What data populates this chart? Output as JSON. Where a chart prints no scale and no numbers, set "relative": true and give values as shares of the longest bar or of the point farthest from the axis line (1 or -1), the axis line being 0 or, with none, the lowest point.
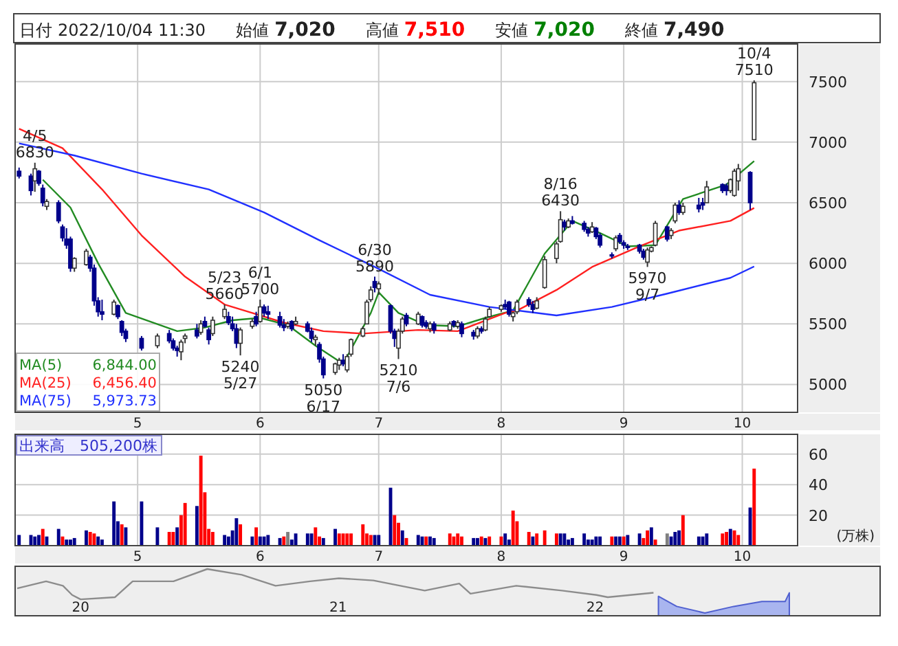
{
  "chart_data": [
    {
      "type": "candlestick",
      "grid": true,
      "legend": "bottom left",
      "colors": [
        "#00008b",
        "#00008b",
        "#ffffff",
        "#00008b",
        "#00008b",
        "#ffffff",
        "#00008b",
        "#00008b",
        "#00008b",
        "#00008b",
        "#ffffff",
        "#ffffff",
        "#00008b",
        "#00008b",
        "#00008b",
        "#00008b",
        "#ffffff",
        "#00008b",
        "#00008b",
        "#00008b",
        "#00008b",
        "#ffffff",
        "#00008b",
        "#00008b",
        "#00008b",
        "#ffffff",
        "#ffffff",
        "#00008b",
        "#ffffff",
        "#00008b",
        "#00008b",
        "#ffffff",
        "#ffffff",
        "#00008b",
        "#00008b",
        "#00008b",
        "#ffffff",
        "#ffffff",
        "#00008b",
        "#ffffff",
        "#00008b",
        "#00008b",
        "#00008b",
        "#00008b",
        "#ffffff",
        "#00008b",
        "#ffffff",
        "#00008b",
        "#00008b",
        "#ffffff",
        "#00008b",
        "#00008b",
        "#ffffff",
        "#ffffff",
        "#00008b",
        "#ffffff",
        "#ffffff",
        "#ffffff",
        "#ffffff",
        "#ffffff",
        "#00008b",
        "#ffffff",
        "#00008b",
        "#00008b",
        "#ffffff",
        "#ffffff",
        "#00008b",
        "#ffffff",
        "#00008b",
        "#00008b",
        "#ffffff",
        "#00008b",
        "#ffffff",
        "#00008b",
        "#ffffff",
        "#00008b",
        "#00008b",
        "#ffffff",
        "#00008b",
        "#ffffff",
        "#ffffff",
        "#ffffff",
        "#00008b",
        "#00008b",
        "#ffffff",
        "#ffffff",
        "#00008b",
        "#00008b",
        "#ffffff",
        "#ffffff",
        "#ffffff",
        "#ffffff",
        "#00008b",
        "#ffffff",
        "#00008b",
        "#00008b",
        "#00008b",
        "#ffffff",
        "#00008b",
        "#00008b",
        "#00008b",
        "#ffffff",
        "#00008b",
        "#00008b",
        "#00008b",
        "#00008b",
        "#00008b",
        "#ffffff",
        "#ffffff",
        "#ffffff",
        "#00008b",
        "#ffffff",
        "#ffffff",
        "#00008b",
        "#ffffff",
        "#00008b",
        "#00008b",
        "#ffffff",
        "#00008b",
        "#00008b",
        "#ffffff",
        "#ffffff",
        "#ffffff",
        "#00008b",
        "#ffffff"
      ],
      "xlim": [
        "2022-03-31",
        "2022-10-15"
      ],
      "xticks": [
        {
          "value": "2022-05-01",
          "label": "5"
        },
        {
          "value": "2022-06-01",
          "label": "6"
        },
        {
          "value": "2022-07-01",
          "label": "7"
        },
        {
          "value": "2022-08-01",
          "label": "8"
        },
        {
          "value": "2022-09-01",
          "label": "9"
        },
        {
          "value": "2022-10-01",
          "label": "10"
        }
      ],
      "ylim": [
        4770,
        7810
      ],
      "yticks": [
        5000,
        5500,
        6000,
        6500,
        7000,
        7500
      ],
      "x": [
        "2022-04-01",
        "2022-04-04",
        "2022-04-05",
        "2022-04-06",
        "2022-04-07",
        "2022-04-08",
        "2022-04-11",
        "2022-04-12",
        "2022-04-13",
        "2022-04-14",
        "2022-04-15",
        "2022-04-18",
        "2022-04-19",
        "2022-04-20",
        "2022-04-21",
        "2022-04-22",
        "2022-04-25",
        "2022-04-26",
        "2022-04-27",
        "2022-04-28",
        "2022-05-02",
        "2022-05-06",
        "2022-05-09",
        "2022-05-10",
        "2022-05-11",
        "2022-05-12",
        "2022-05-13",
        "2022-05-16",
        "2022-05-17",
        "2022-05-18",
        "2022-05-19",
        "2022-05-20",
        "2022-05-23",
        "2022-05-24",
        "2022-05-25",
        "2022-05-26",
        "2022-05-27",
        "2022-05-30",
        "2022-05-31",
        "2022-06-01",
        "2022-06-02",
        "2022-06-03",
        "2022-06-06",
        "2022-06-07",
        "2022-06-08",
        "2022-06-09",
        "2022-06-10",
        "2022-06-13",
        "2022-06-14",
        "2022-06-15",
        "2022-06-16",
        "2022-06-17",
        "2022-06-20",
        "2022-06-21",
        "2022-06-22",
        "2022-06-23",
        "2022-06-24",
        "2022-06-27",
        "2022-06-28",
        "2022-06-29",
        "2022-06-30",
        "2022-07-01",
        "2022-07-04",
        "2022-07-05",
        "2022-07-06",
        "2022-07-07",
        "2022-07-08",
        "2022-07-11",
        "2022-07-12",
        "2022-07-13",
        "2022-07-14",
        "2022-07-15",
        "2022-07-19",
        "2022-07-20",
        "2022-07-21",
        "2022-07-22",
        "2022-07-25",
        "2022-07-26",
        "2022-07-27",
        "2022-07-28",
        "2022-07-29",
        "2022-08-01",
        "2022-08-02",
        "2022-08-03",
        "2022-08-04",
        "2022-08-05",
        "2022-08-08",
        "2022-08-09",
        "2022-08-10",
        "2022-08-12",
        "2022-08-15",
        "2022-08-16",
        "2022-08-17",
        "2022-08-18",
        "2022-08-19",
        "2022-08-22",
        "2022-08-23",
        "2022-08-24",
        "2022-08-25",
        "2022-08-26",
        "2022-08-29",
        "2022-08-30",
        "2022-08-31",
        "2022-09-01",
        "2022-09-02",
        "2022-09-05",
        "2022-09-06",
        "2022-09-07",
        "2022-09-08",
        "2022-09-09",
        "2022-09-12",
        "2022-09-13",
        "2022-09-14",
        "2022-09-15",
        "2022-09-16",
        "2022-09-20",
        "2022-09-21",
        "2022-09-22",
        "2022-09-26",
        "2022-09-27",
        "2022-09-28",
        "2022-09-29",
        "2022-09-30",
        "2022-10-03",
        "2022-10-04"
      ],
      "ohlc": [
        [
          6760,
          6790,
          6700,
          6720
        ],
        [
          6720,
          6740,
          6560,
          6600
        ],
        [
          6680,
          6830,
          6590,
          6780
        ],
        [
          6760,
          6770,
          6640,
          6660
        ],
        [
          6620,
          6650,
          6470,
          6500
        ],
        [
          6470,
          6530,
          6440,
          6510
        ],
        [
          6500,
          6520,
          6330,
          6350
        ],
        [
          6300,
          6320,
          6180,
          6210
        ],
        [
          6200,
          6290,
          6120,
          6150
        ],
        [
          6200,
          6220,
          5930,
          5960
        ],
        [
          5960,
          6050,
          5930,
          6040
        ],
        [
          5990,
          6120,
          5980,
          6100
        ],
        [
          6050,
          6070,
          5930,
          5960
        ],
        [
          5960,
          5990,
          5650,
          5690
        ],
        [
          5690,
          5720,
          5560,
          5600
        ],
        [
          5600,
          5700,
          5530,
          5580
        ],
        [
          5580,
          5700,
          5570,
          5680
        ],
        [
          5650,
          5660,
          5540,
          5560
        ],
        [
          5520,
          5530,
          5400,
          5430
        ],
        [
          5440,
          5460,
          5350,
          5380
        ],
        [
          5380,
          5400,
          5280,
          5300
        ],
        [
          5320,
          5420,
          5300,
          5400
        ],
        [
          5420,
          5450,
          5340,
          5360
        ],
        [
          5360,
          5380,
          5280,
          5300
        ],
        [
          5300,
          5320,
          5230,
          5280
        ],
        [
          5270,
          5370,
          5200,
          5350
        ],
        [
          5380,
          5420,
          5340,
          5400
        ],
        [
          5450,
          5500,
          5380,
          5400
        ],
        [
          5430,
          5530,
          5410,
          5500
        ],
        [
          5520,
          5560,
          5470,
          5480
        ],
        [
          5450,
          5470,
          5330,
          5370
        ],
        [
          5420,
          5560,
          5400,
          5530
        ],
        [
          5560,
          5660,
          5540,
          5620
        ],
        [
          5560,
          5600,
          5490,
          5510
        ],
        [
          5500,
          5560,
          5440,
          5460
        ],
        [
          5460,
          5500,
          5300,
          5340
        ],
        [
          5340,
          5470,
          5240,
          5450
        ],
        [
          5480,
          5540,
          5460,
          5520
        ],
        [
          5560,
          5600,
          5480,
          5500
        ],
        [
          5520,
          5700,
          5510,
          5640
        ],
        [
          5640,
          5660,
          5560,
          5590
        ],
        [
          5600,
          5650,
          5540,
          5580
        ],
        [
          5560,
          5600,
          5470,
          5490
        ],
        [
          5490,
          5540,
          5440,
          5470
        ],
        [
          5480,
          5520,
          5460,
          5500
        ],
        [
          5520,
          5530,
          5440,
          5460
        ],
        [
          5500,
          5560,
          5490,
          5520
        ],
        [
          5500,
          5520,
          5430,
          5440
        ],
        [
          5440,
          5470,
          5350,
          5380
        ],
        [
          5370,
          5410,
          5320,
          5390
        ],
        [
          5330,
          5350,
          5180,
          5210
        ],
        [
          5210,
          5230,
          5050,
          5080
        ],
        [
          5100,
          5180,
          5080,
          5170
        ],
        [
          5160,
          5220,
          5120,
          5200
        ],
        [
          5200,
          5250,
          5150,
          5170
        ],
        [
          5120,
          5250,
          5100,
          5230
        ],
        [
          5250,
          5380,
          5230,
          5370
        ],
        [
          5400,
          5480,
          5390,
          5460
        ],
        [
          5500,
          5700,
          5500,
          5680
        ],
        [
          5700,
          5810,
          5680,
          5780
        ],
        [
          5850,
          5890,
          5760,
          5800
        ],
        [
          5790,
          5850,
          5740,
          5830
        ],
        [
          5650,
          5660,
          5420,
          5440
        ],
        [
          5440,
          5460,
          5310,
          5380
        ],
        [
          5300,
          5460,
          5210,
          5440
        ],
        [
          5440,
          5560,
          5420,
          5540
        ],
        [
          5570,
          5590,
          5480,
          5500
        ],
        [
          5500,
          5600,
          5490,
          5580
        ],
        [
          5560,
          5570,
          5470,
          5490
        ],
        [
          5510,
          5530,
          5460,
          5480
        ],
        [
          5460,
          5520,
          5430,
          5500
        ],
        [
          5500,
          5520,
          5420,
          5450
        ],
        [
          5450,
          5520,
          5440,
          5500
        ],
        [
          5520,
          5530,
          5470,
          5490
        ],
        [
          5480,
          5530,
          5460,
          5510
        ],
        [
          5500,
          5520,
          5390,
          5420
        ],
        [
          5430,
          5450,
          5370,
          5400
        ],
        [
          5400,
          5480,
          5380,
          5460
        ],
        [
          5460,
          5480,
          5420,
          5440
        ],
        [
          5450,
          5560,
          5440,
          5540
        ],
        [
          5560,
          5640,
          5550,
          5620
        ],
        [
          5620,
          5660,
          5600,
          5650
        ],
        [
          5660,
          5700,
          5620,
          5640
        ],
        [
          5680,
          5690,
          5560,
          5580
        ],
        [
          5560,
          5600,
          5520,
          5590
        ],
        [
          5600,
          5700,
          5580,
          5680
        ],
        [
          5700,
          5720,
          5640,
          5660
        ],
        [
          5660,
          5690,
          5590,
          5620
        ],
        [
          5630,
          5720,
          5620,
          5690
        ],
        [
          5800,
          6060,
          5790,
          6030
        ],
        [
          6040,
          6180,
          6000,
          6160
        ],
        [
          6180,
          6430,
          6170,
          6360
        ],
        [
          6340,
          6360,
          6270,
          6300
        ],
        [
          6300,
          6370,
          6290,
          6350
        ],
        [
          6350,
          6390,
          6320,
          6330
        ],
        [
          6330,
          6350,
          6260,
          6280
        ],
        [
          6280,
          6300,
          6220,
          6250
        ],
        [
          6260,
          6340,
          6250,
          6300
        ],
        [
          6290,
          6300,
          6200,
          6220
        ],
        [
          6230,
          6250,
          6130,
          6150
        ],
        [
          6070,
          6090,
          6040,
          6060
        ],
        [
          6120,
          6230,
          6100,
          6210
        ],
        [
          6230,
          6250,
          6160,
          6180
        ],
        [
          6170,
          6190,
          6120,
          6150
        ],
        [
          6140,
          6160,
          6110,
          6130
        ],
        [
          6150,
          6160,
          6080,
          6100
        ],
        [
          6100,
          6120,
          6030,
          6050
        ],
        [
          6010,
          6130,
          5970,
          6110
        ],
        [
          6100,
          6140,
          6090,
          6130
        ],
        [
          6150,
          6350,
          6140,
          6330
        ],
        [
          6300,
          6310,
          6180,
          6200
        ],
        [
          6230,
          6290,
          6200,
          6270
        ],
        [
          6350,
          6500,
          6330,
          6480
        ],
        [
          6480,
          6520,
          6400,
          6420
        ],
        [
          6420,
          6500,
          6400,
          6470
        ],
        [
          6480,
          6540,
          6420,
          6450
        ],
        [
          6500,
          6540,
          6440,
          6480
        ],
        [
          6500,
          6680,
          6500,
          6630
        ],
        [
          6650,
          6660,
          6580,
          6600
        ],
        [
          6640,
          6660,
          6560,
          6600
        ],
        [
          6600,
          6700,
          6580,
          6690
        ],
        [
          6560,
          6780,
          6550,
          6760
        ],
        [
          6680,
          6820,
          6600,
          6780
        ],
        [
          6750,
          6760,
          6440,
          6500
        ],
        [
          7020,
          7510,
          7020,
          7490
        ]
      ],
      "series": [
        {
          "name": "MA(5)",
          "type": "line",
          "color": "#228b22",
          "x": [
            "2022-04-07",
            "2022-04-14",
            "2022-04-21",
            "2022-04-28",
            "2022-05-11",
            "2022-05-18",
            "2022-05-25",
            "2022-06-01",
            "2022-06-08",
            "2022-06-15",
            "2022-06-22",
            "2022-06-29",
            "2022-07-01",
            "2022-07-06",
            "2022-07-13",
            "2022-07-21",
            "2022-07-28",
            "2022-08-04",
            "2022-08-12",
            "2022-08-19",
            "2022-08-26",
            "2022-09-02",
            "2022-09-09",
            "2022-09-16",
            "2022-09-27",
            "2022-10-04"
          ],
          "values": [
            6690,
            6460,
            6000,
            5590,
            5440,
            5470,
            5530,
            5550,
            5490,
            5320,
            5170,
            5590,
            5760,
            5590,
            5490,
            5480,
            5550,
            5610,
            6080,
            6350,
            6250,
            6140,
            6150,
            6530,
            6650,
            6844
          ]
        },
        {
          "name": "MA(25)",
          "type": "line",
          "color": "#ff2020",
          "x": [
            "2022-04-01",
            "2022-04-12",
            "2022-04-22",
            "2022-05-02",
            "2022-05-13",
            "2022-05-23",
            "2022-05-30",
            "2022-06-07",
            "2022-06-17",
            "2022-06-27",
            "2022-07-11",
            "2022-07-21",
            "2022-08-02",
            "2022-08-05",
            "2022-08-15",
            "2022-08-24",
            "2022-09-05",
            "2022-09-15",
            "2022-09-28",
            "2022-10-04"
          ],
          "values": [
            7110,
            6950,
            6610,
            6230,
            5890,
            5660,
            5590,
            5510,
            5440,
            5420,
            5450,
            5440,
            5590,
            5610,
            5780,
            5970,
            6140,
            6270,
            6350,
            6456.4
          ]
        },
        {
          "name": "MA(75)",
          "type": "line",
          "color": "#2030ff",
          "x": [
            "2022-04-01",
            "2022-04-15",
            "2022-05-02",
            "2022-05-19",
            "2022-06-02",
            "2022-06-16",
            "2022-06-30",
            "2022-07-14",
            "2022-07-29",
            "2022-08-15",
            "2022-08-29",
            "2022-09-12",
            "2022-09-28",
            "2022-10-04"
          ],
          "values": [
            6990,
            6890,
            6740,
            6610,
            6420,
            6190,
            5970,
            5740,
            5640,
            5570,
            5640,
            5750,
            5880,
            5973.73
          ]
        }
      ],
      "annotations": [
        "日付",
        "2022/10/04 11:30",
        "始値",
        "7,020",
        "高値",
        "7,510",
        "安値",
        "7,020",
        "終値",
        "7,490",
        "6,844.00",
        "6,456.40",
        "5,973.73",
        {
          "text": "4/5\n6830",
          "x": "2022-04-05",
          "y": 6830
        },
        {
          "text": "5/23\n5660",
          "x": "2022-05-23",
          "y": 5660
        },
        {
          "text": "6/1\n5700",
          "x": "2022-06-01",
          "y": 5700
        },
        {
          "text": "5240\n5/27",
          "x": "2022-05-27",
          "y": 5240
        },
        {
          "text": "5050\n6/17",
          "x": "2022-06-17",
          "y": 5050
        },
        {
          "text": "6/30\n5890",
          "x": "2022-06-30",
          "y": 5890
        },
        {
          "text": "5210\n7/6",
          "x": "2022-07-06",
          "y": 5210
        },
        {
          "text": "8/16\n6430",
          "x": "2022-08-16",
          "y": 6430
        },
        {
          "text": "5970\n9/7",
          "x": "2022-09-07",
          "y": 5970
        },
        {
          "text": "10/4\n7510",
          "x": "2022-10-04",
          "y": 7510
        }
      ]
    },
    {
      "type": "bar",
      "grid": true,
      "ylabel": "(万株)",
      "annotations": [
        "出来高　505,200株"
      ],
      "xlim": [
        "2022-03-31",
        "2022-10-15"
      ],
      "xticks": [
        {
          "value": "2022-05-01",
          "label": "5"
        },
        {
          "value": "2022-06-01",
          "label": "6"
        },
        {
          "value": "2022-07-01",
          "label": "7"
        },
        {
          "value": "2022-08-01",
          "label": "8"
        },
        {
          "value": "2022-09-01",
          "label": "9"
        },
        {
          "value": "2022-10-01",
          "label": "10"
        }
      ],
      "ylim": [
        0,
        73
      ],
      "yticks": [
        20,
        40,
        60
      ],
      "x": [
        "2022-04-01",
        "2022-04-04",
        "2022-04-05",
        "2022-04-06",
        "2022-04-07",
        "2022-04-08",
        "2022-04-11",
        "2022-04-12",
        "2022-04-13",
        "2022-04-14",
        "2022-04-15",
        "2022-04-18",
        "2022-04-19",
        "2022-04-20",
        "2022-04-21",
        "2022-04-22",
        "2022-04-25",
        "2022-04-26",
        "2022-04-27",
        "2022-04-28",
        "2022-05-02",
        "2022-05-06",
        "2022-05-09",
        "2022-05-10",
        "2022-05-11",
        "2022-05-12",
        "2022-05-13",
        "2022-05-16",
        "2022-05-17",
        "2022-05-18",
        "2022-05-19",
        "2022-05-20",
        "2022-05-23",
        "2022-05-24",
        "2022-05-25",
        "2022-05-26",
        "2022-05-27",
        "2022-05-30",
        "2022-05-31",
        "2022-06-01",
        "2022-06-02",
        "2022-06-03",
        "2022-06-06",
        "2022-06-07",
        "2022-06-08",
        "2022-06-09",
        "2022-06-10",
        "2022-06-13",
        "2022-06-14",
        "2022-06-15",
        "2022-06-16",
        "2022-06-17",
        "2022-06-20",
        "2022-06-21",
        "2022-06-22",
        "2022-06-23",
        "2022-06-24",
        "2022-06-27",
        "2022-06-28",
        "2022-06-29",
        "2022-06-30",
        "2022-07-01",
        "2022-07-04",
        "2022-07-05",
        "2022-07-06",
        "2022-07-07",
        "2022-07-08",
        "2022-07-11",
        "2022-07-12",
        "2022-07-13",
        "2022-07-14",
        "2022-07-15",
        "2022-07-19",
        "2022-07-20",
        "2022-07-21",
        "2022-07-22",
        "2022-07-25",
        "2022-07-26",
        "2022-07-27",
        "2022-07-28",
        "2022-07-29",
        "2022-08-01",
        "2022-08-02",
        "2022-08-03",
        "2022-08-04",
        "2022-08-05",
        "2022-08-08",
        "2022-08-09",
        "2022-08-10",
        "2022-08-12",
        "2022-08-15",
        "2022-08-16",
        "2022-08-17",
        "2022-08-18",
        "2022-08-19",
        "2022-08-22",
        "2022-08-23",
        "2022-08-24",
        "2022-08-25",
        "2022-08-26",
        "2022-08-29",
        "2022-08-30",
        "2022-08-31",
        "2022-09-01",
        "2022-09-02",
        "2022-09-05",
        "2022-09-06",
        "2022-09-07",
        "2022-09-08",
        "2022-09-09",
        "2022-09-12",
        "2022-09-13",
        "2022-09-14",
        "2022-09-15",
        "2022-09-16",
        "2022-09-20",
        "2022-09-21",
        "2022-09-22",
        "2022-09-26",
        "2022-09-27",
        "2022-09-28",
        "2022-09-29",
        "2022-09-30",
        "2022-10-03",
        "2022-10-04"
      ],
      "values": [
        7,
        7,
        6,
        7,
        11,
        6,
        11,
        6,
        4,
        4,
        5,
        10,
        9,
        8,
        6,
        4,
        29,
        16,
        14,
        12,
        29,
        12,
        9,
        9,
        12,
        20,
        28,
        26,
        59,
        35,
        11,
        9,
        7,
        6,
        10,
        18,
        14,
        6,
        12,
        6,
        6,
        7,
        5,
        6,
        9,
        4,
        8,
        8,
        8,
        12,
        6,
        5,
        11,
        8,
        8,
        8,
        8,
        14,
        8,
        7,
        7,
        7,
        38,
        20,
        15,
        10,
        5,
        7,
        6,
        6,
        6,
        5,
        8,
        6,
        8,
        6,
        5,
        5,
        6,
        5,
        6,
        6,
        8,
        4,
        23,
        16,
        9,
        6,
        8,
        10,
        8,
        8,
        8,
        4,
        5,
        8,
        4,
        4,
        6,
        6,
        6,
        6,
        6,
        6,
        7,
        8,
        5,
        10,
        12,
        4,
        8,
        6,
        9,
        10,
        20,
        6,
        6,
        8,
        8,
        9,
        11,
        10,
        7,
        25,
        50.52
      ],
      "colors": [
        "#00008b",
        "#00008b",
        "#00008b",
        "#00008b",
        "#ff0000",
        "#00008b",
        "#00008b",
        "#ff0000",
        "#00008b",
        "#00008b",
        "#00008b",
        "#00008b",
        "#ff0000",
        "#ff0000",
        "#00008b",
        "#00008b",
        "#00008b",
        "#00008b",
        "#ff0000",
        "#00008b",
        "#00008b",
        "#00008b",
        "#ff0000",
        "#ff0000",
        "#00008b",
        "#ff0000",
        "#ff0000",
        "#00008b",
        "#ff0000",
        "#ff0000",
        "#ff0000",
        "#ff0000",
        "#00008b",
        "#00008b",
        "#00008b",
        "#00008b",
        "#ff0000",
        "#00008b",
        "#ff0000",
        "#00008b",
        "#00008b",
        "#00008b",
        "#00008b",
        "#ff0000",
        "#808080",
        "#00008b",
        "#00008b",
        "#00008b",
        "#00008b",
        "#ff0000",
        "#ff0000",
        "#00008b",
        "#00008b",
        "#ff0000",
        "#ff0000",
        "#ff0000",
        "#ff0000",
        "#ff0000",
        "#ff0000",
        "#ff0000",
        "#00008b",
        "#00008b",
        "#00008b",
        "#ff0000",
        "#ff0000",
        "#00008b",
        "#ff0000",
        "#00008b",
        "#00008b",
        "#ff0000",
        "#00008b",
        "#00008b",
        "#ff0000",
        "#ff0000",
        "#ff0000",
        "#ff0000",
        "#00008b",
        "#00008b",
        "#ff0000",
        "#00008b",
        "#ff0000",
        "#ff0000",
        "#00008b",
        "#00008b",
        "#ff0000",
        "#ff0000",
        "#ff0000",
        "#00008b",
        "#ff0000",
        "#ff0000",
        "#ff0000",
        "#00008b",
        "#00008b",
        "#00008b",
        "#00008b",
        "#00008b",
        "#00008b",
        "#00008b",
        "#00008b",
        "#00008b",
        "#ff0000",
        "#00008b",
        "#00008b",
        "#ff0000",
        "#00008b",
        "#00008b",
        "#ff0000",
        "#ff0000",
        "#00008b",
        "#ff0000",
        "#808080",
        "#00008b",
        "#00008b",
        "#00008b",
        "#ff0000",
        "#00008b",
        "#00008b",
        "#00008b",
        "#ff0000",
        "#ff0000",
        "#00008b",
        "#ff0000",
        "#ff0000",
        "#00008b",
        "#ff0000"
      ]
    },
    {
      "type": "line",
      "relative": true,
      "tick_labels": "x",
      "xlim": [
        "2019-09-30",
        "2023-02-10"
      ],
      "xticks": [
        {
          "value": "2020-01-01",
          "label": "20"
        },
        {
          "value": "2021-01-01",
          "label": "21"
        },
        {
          "value": "2022-01-01",
          "label": "22"
        }
      ],
      "series": [
        {
          "type": "line",
          "color": "#8c8c8c",
          "x": [
            "2019-10-03",
            "2019-11-13",
            "2019-12-07",
            "2019-12-20",
            "2020-01-01",
            "2020-02-19",
            "2020-03-15",
            "2020-05-12",
            "2020-06-29",
            "2020-08-17",
            "2020-10-04",
            "2020-11-22",
            "2021-01-02",
            "2021-02-20",
            "2021-05-04",
            "2021-06-22",
            "2021-07-08",
            "2021-09-11",
            "2021-11-15",
            "2022-01-03",
            "2022-01-19",
            "2022-03-25"
          ],
          "values": [
            0.56,
            0.72,
            0.62,
            0.41,
            0.31,
            0.36,
            0.72,
            0.72,
            1,
            0.87,
            0.62,
            0.72,
            0.79,
            0.74,
            0.51,
            0.67,
            0.44,
            0.62,
            0.51,
            0.41,
            0.36,
            0.46
          ]
        },
        {
          "type": "area",
          "color": "#8c9cf0",
          "x": [
            "2022-04-01",
            "2022-04-27",
            "2022-06-06",
            "2022-07-17",
            "2022-08-26",
            "2022-09-28",
            "2022-10-04"
          ],
          "values": [
            0.38,
            0.15,
            0,
            0.15,
            0.26,
            0.26,
            0.46
          ]
        }
      ]
    }
  ]
}
